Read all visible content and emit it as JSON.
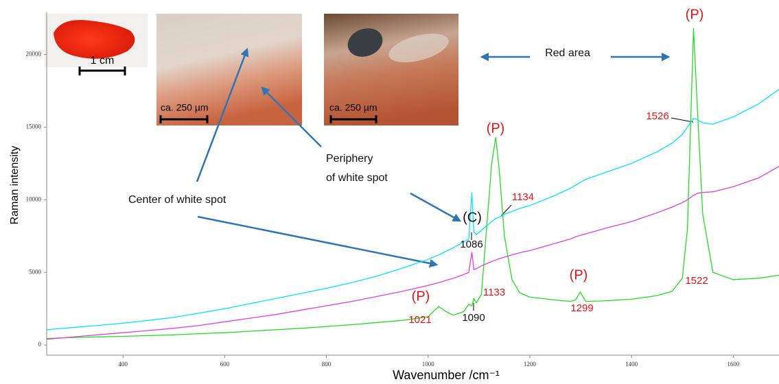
{
  "chart_data": {
    "type": "line",
    "y_label": "Raman intensity",
    "x_label": "Wavenumber /cm⁻¹",
    "xlim": [
      250,
      1690
    ],
    "ylim": [
      -700,
      22900
    ],
    "xticks": [
      400,
      600,
      800,
      1000,
      1200,
      1400,
      1600
    ],
    "yticks": [
      0,
      5000,
      10000,
      15000,
      20000
    ],
    "x": [
      250,
      300,
      350,
      400,
      450,
      500,
      550,
      600,
      650,
      700,
      750,
      800,
      850,
      900,
      950,
      1000,
      1010,
      1021,
      1035,
      1050,
      1070,
      1080,
      1086,
      1090,
      1095,
      1105,
      1115,
      1125,
      1133,
      1140,
      1150,
      1165,
      1180,
      1200,
      1250,
      1280,
      1290,
      1299,
      1310,
      1350,
      1400,
      1450,
      1480,
      1500,
      1510,
      1522,
      1530,
      1540,
      1560,
      1600,
      1650,
      1690
    ],
    "series": [
      {
        "color": "#22dd22",
        "values": [
          450,
          520,
          560,
          600,
          650,
          700,
          780,
          850,
          950,
          1050,
          1150,
          1280,
          1400,
          1550,
          1700,
          1950,
          2300,
          2650,
          2300,
          2050,
          2300,
          2800,
          2700,
          3200,
          2900,
          3500,
          8000,
          12500,
          14300,
          12000,
          7500,
          4500,
          3600,
          3300,
          3100,
          3000,
          3100,
          3650,
          3000,
          3050,
          3150,
          3400,
          3700,
          4600,
          8000,
          21800,
          16000,
          9000,
          5000,
          4500,
          4600,
          4800
        ]
      },
      {
        "color": "#00e5ff",
        "values": [
          1050,
          1200,
          1350,
          1500,
          1700,
          1900,
          2200,
          2500,
          2850,
          3200,
          3550,
          3900,
          4300,
          4750,
          5300,
          5900,
          6050,
          6200,
          6450,
          6700,
          7100,
          7300,
          10500,
          7800,
          7600,
          7900,
          8200,
          8500,
          8700,
          8800,
          9000,
          9200,
          9400,
          9600,
          10300,
          10800,
          11000,
          11200,
          11400,
          11900,
          12500,
          13300,
          13900,
          14500,
          15000,
          15600,
          15500,
          15300,
          15200,
          15700,
          16600,
          17600
        ]
      },
      {
        "color": "#e040e0",
        "values": [
          400,
          550,
          700,
          850,
          1000,
          1150,
          1350,
          1600,
          1850,
          2100,
          2400,
          2700,
          3000,
          3350,
          3700,
          4100,
          4200,
          4300,
          4450,
          4600,
          4850,
          5000,
          6400,
          5200,
          5250,
          5450,
          5600,
          5750,
          5850,
          5950,
          6050,
          6200,
          6350,
          6500,
          7000,
          7300,
          7450,
          7550,
          7650,
          8050,
          8500,
          9100,
          9500,
          9800,
          10000,
          10300,
          10450,
          10500,
          10550,
          10900,
          11500,
          12300
        ]
      }
    ],
    "annotations": [
      {
        "text": "(P)",
        "color": "#ee1111"
      },
      {
        "text": "(P)",
        "color": "#ee1111"
      },
      {
        "text": "(P)",
        "color": "#ee1111"
      },
      {
        "text": "(P)",
        "color": "#ee1111"
      },
      {
        "text": "(C)",
        "color": "#111111"
      },
      {
        "text": "Red area",
        "color": "#111111"
      },
      {
        "text": "Periphery",
        "color": "#111111"
      },
      {
        "text": "of white spot",
        "color": "#111111"
      },
      {
        "text": "Center of white spot",
        "color": "#111111"
      }
    ],
    "peak_labels": [
      {
        "value": 1021,
        "color": "#ee1111"
      },
      {
        "value": 1090,
        "color": "#111111"
      },
      {
        "value": 1133,
        "color": "#ee1111"
      },
      {
        "value": 1299,
        "color": "#ee1111"
      },
      {
        "value": 1522,
        "color": "#ee1111"
      },
      {
        "value": 1526,
        "color": "#ee1111"
      },
      {
        "value": 1134,
        "color": "#ee1111"
      },
      {
        "value": 1086,
        "color": "#111111"
      }
    ],
    "scale_labels": [
      "1 cm",
      "ca. 250 µm",
      "ca. 250 µm"
    ]
  }
}
